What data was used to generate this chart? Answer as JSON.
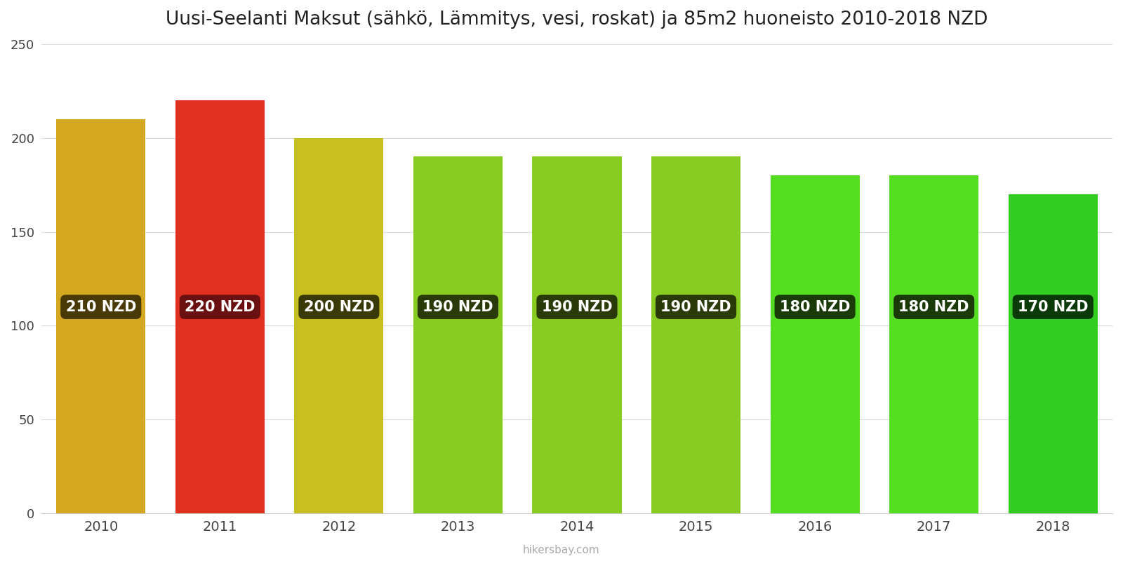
{
  "title": "Uusi-Seelanti Maksut (sähkö, Lämmitys, vesi, roskat) ja 85m2 huoneisto 2010-2018 NZD",
  "years": [
    2010,
    2011,
    2012,
    2013,
    2014,
    2015,
    2016,
    2017,
    2018
  ],
  "values": [
    210,
    220,
    200,
    190,
    190,
    190,
    180,
    180,
    170
  ],
  "bar_colors": [
    "#D4A820",
    "#E03020",
    "#C8C020",
    "#88CC22",
    "#88CC22",
    "#88CC22",
    "#55DD22",
    "#55DD22",
    "#33CC22"
  ],
  "label_bg_colors": [
    "#4a3a08",
    "#6a1010",
    "#3a3a08",
    "#2a3a08",
    "#2a3a08",
    "#2a3a08",
    "#1a3a08",
    "#1a3a08",
    "#0a3a08"
  ],
  "ylim": [
    0,
    250
  ],
  "yticks": [
    0,
    50,
    100,
    150,
    200,
    250
  ],
  "footer": "hikersbay.com",
  "background_color": "#ffffff",
  "title_fontsize": 19,
  "label_fontsize": 15,
  "bar_width": 0.75
}
